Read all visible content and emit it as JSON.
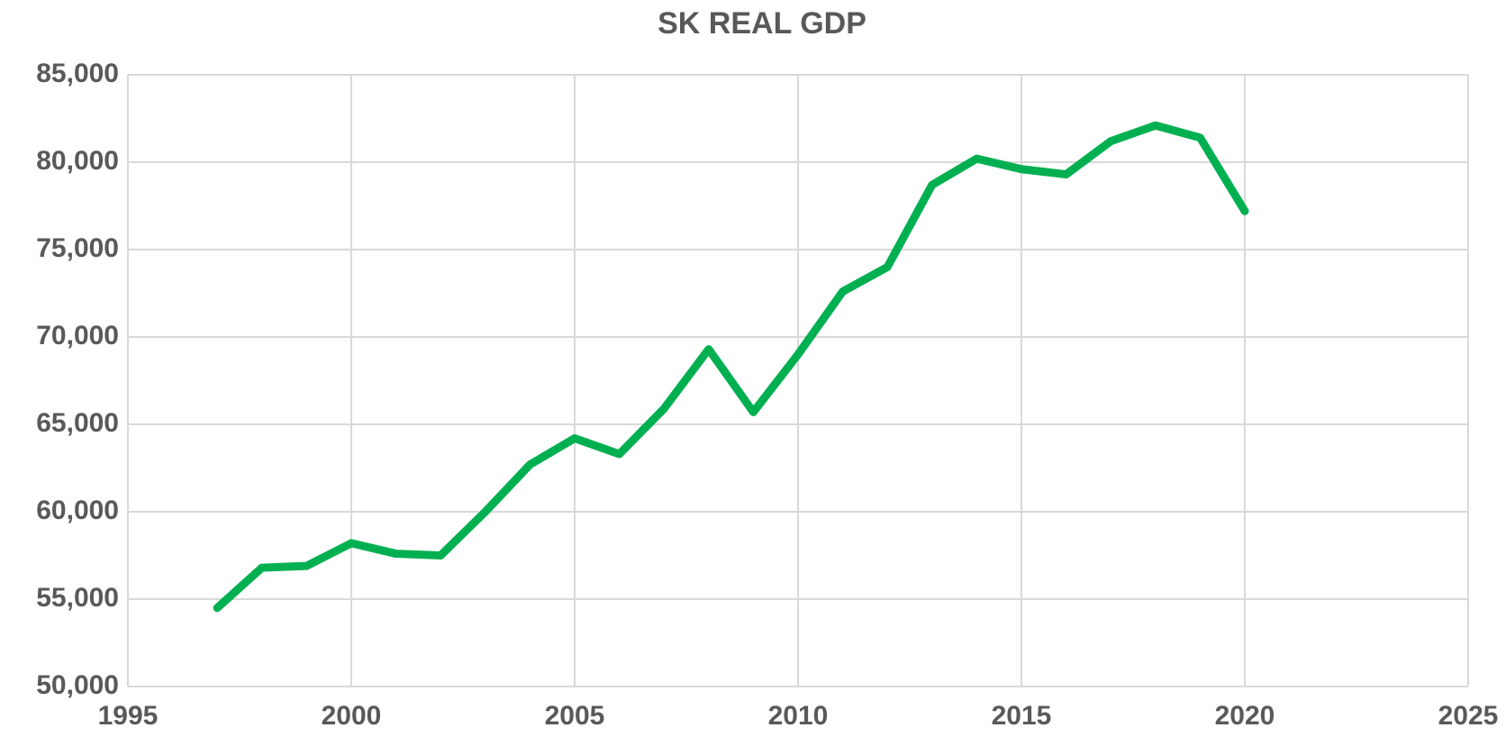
{
  "chart_data": {
    "type": "line",
    "title": "SK REAL GDP",
    "x": [
      1997,
      1998,
      1999,
      2000,
      2001,
      2002,
      2003,
      2004,
      2005,
      2006,
      2007,
      2008,
      2009,
      2010,
      2011,
      2012,
      2013,
      2014,
      2015,
      2016,
      2017,
      2018,
      2019,
      2020
    ],
    "series": [
      {
        "name": "SK Real GDP",
        "color": "#00b050",
        "values": [
          54500,
          56800,
          56900,
          58200,
          57600,
          57500,
          60000,
          62700,
          64200,
          63300,
          65900,
          69300,
          65700,
          69000,
          72600,
          74000,
          78700,
          80200,
          79600,
          79300,
          81200,
          82100,
          81400,
          77200
        ]
      }
    ],
    "xlim": [
      1995,
      2025
    ],
    "xticks": [
      1995,
      2000,
      2005,
      2010,
      2015,
      2020,
      2025
    ],
    "ylim": [
      50000,
      85000
    ],
    "yticks": [
      {
        "value": 50000,
        "label": "50,000"
      },
      {
        "value": 55000,
        "label": "55,000"
      },
      {
        "value": 60000,
        "label": "60,000"
      },
      {
        "value": 65000,
        "label": "65,000"
      },
      {
        "value": 70000,
        "label": "70,000"
      },
      {
        "value": 75000,
        "label": "75,000"
      },
      {
        "value": 80000,
        "label": "80,000"
      },
      {
        "value": 85000,
        "label": "85,000"
      }
    ],
    "grid": true
  }
}
